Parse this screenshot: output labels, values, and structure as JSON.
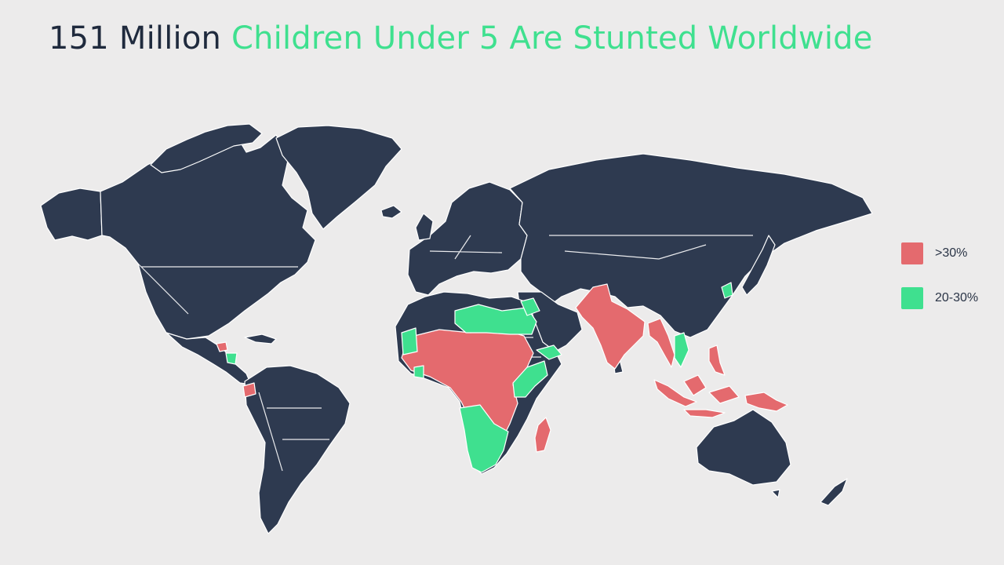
{
  "title": {
    "dark_part": "151 Million",
    "accent_part": "Children Under 5 Are Stunted Worldwide"
  },
  "colors": {
    "background": "#ecebeb",
    "land": "#2e3a50",
    "border": "#ffffff",
    "high": "#e46a6e",
    "medium": "#3fe08f",
    "title_dark": "#1f2a3d",
    "title_accent": "#3fe08f"
  },
  "legend": {
    "items": [
      {
        "label": ">30%",
        "category": "high"
      },
      {
        "label": "20-30%",
        "category": "medium"
      }
    ]
  },
  "map": {
    "metric": "stunting prevalence, children under 5",
    "regions_high": [
      "West Africa",
      "Central Africa",
      "East Africa",
      "DR Congo",
      "Angola",
      "Zambia",
      "Mozambique",
      "Madagascar",
      "India",
      "Pakistan",
      "Afghanistan",
      "Nepal",
      "Bangladesh",
      "Myanmar",
      "Laos",
      "Cambodia",
      "Indonesia",
      "Papua New Guinea",
      "Philippines",
      "Timor-Leste",
      "Guatemala",
      "Ecuador"
    ],
    "regions_medium": [
      "Libya",
      "Egypt",
      "Mauritania",
      "Ghana",
      "Kenya",
      "Namibia",
      "Botswana",
      "South Africa",
      "Zimbabwe",
      "Yemen",
      "Vietnam",
      "North Korea",
      "Honduras",
      "Syria",
      "Senegal",
      "Iraq"
    ]
  }
}
